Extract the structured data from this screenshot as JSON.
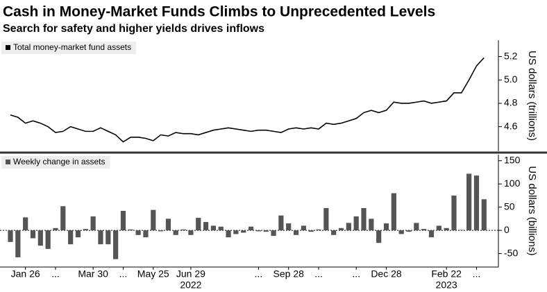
{
  "title": "Cash in Money-Market Funds Climbs to Unprecedented Levels",
  "subtitle": "Search for safety and higher yields drives inflows",
  "chart_data": [
    {
      "type": "line",
      "y_axis_label": "US dollars (trillions)",
      "ylim": [
        4.39,
        5.34
      ],
      "yticks": [
        4.6,
        4.8,
        {
          "value": 5,
          "label": "5.0"
        },
        5.2
      ],
      "legend": "top-left",
      "series": [
        {
          "name": "Total money-market fund assets",
          "color": "#000000",
          "values": [
            4.7,
            4.68,
            4.63,
            4.65,
            4.63,
            4.6,
            4.55,
            4.56,
            4.6,
            4.58,
            4.56,
            4.56,
            4.59,
            4.56,
            4.53,
            4.47,
            4.51,
            4.51,
            4.5,
            4.48,
            4.53,
            4.52,
            4.55,
            4.54,
            4.54,
            4.53,
            4.55,
            4.57,
            4.58,
            4.59,
            4.58,
            4.57,
            4.56,
            4.57,
            4.57,
            4.56,
            4.55,
            4.58,
            4.59,
            4.58,
            4.59,
            4.58,
            4.63,
            4.62,
            4.63,
            4.65,
            4.67,
            4.72,
            4.74,
            4.72,
            4.74,
            4.81,
            4.8,
            4.8,
            4.81,
            4.82,
            4.8,
            4.81,
            4.82,
            4.89,
            4.89,
            5.0,
            5.12,
            5.19
          ]
        }
      ]
    },
    {
      "type": "bar",
      "y_axis_label": "US dollars (billions)",
      "ylim": [
        -79,
        163
      ],
      "yticks": [
        -50,
        0,
        50,
        100,
        150
      ],
      "legend": "top-left",
      "categories": [
        null,
        null,
        "Jan 26",
        null,
        null,
        null,
        "...",
        null,
        null,
        null,
        null,
        "Mar 30",
        null,
        null,
        null,
        "...",
        null,
        null,
        null,
        "May 25",
        null,
        null,
        null,
        null,
        "Jun 29",
        null,
        null,
        null,
        null,
        null,
        null,
        null,
        null,
        "...",
        null,
        null,
        null,
        "Sep 28",
        null,
        null,
        null,
        "...",
        null,
        null,
        null,
        null,
        "...",
        null,
        null,
        null,
        "Dec 28",
        null,
        null,
        null,
        null,
        null,
        null,
        null,
        "Feb 22",
        null,
        null,
        null,
        "...",
        null
      ],
      "category_years": [
        null,
        null,
        null,
        null,
        null,
        null,
        null,
        null,
        null,
        null,
        null,
        null,
        null,
        null,
        null,
        null,
        null,
        null,
        null,
        null,
        null,
        null,
        null,
        null,
        "2022",
        null,
        null,
        null,
        null,
        null,
        null,
        null,
        null,
        null,
        null,
        null,
        null,
        null,
        null,
        null,
        null,
        null,
        null,
        null,
        null,
        null,
        null,
        null,
        null,
        null,
        null,
        null,
        null,
        null,
        null,
        null,
        null,
        null,
        "2023",
        null,
        null,
        null,
        null,
        null
      ],
      "series": [
        {
          "name": "Weekly change in assets",
          "color": "#555555",
          "values": [
            -25,
            -58,
            28,
            -17,
            -33,
            -40,
            5,
            52,
            -30,
            -15,
            3,
            30,
            -30,
            -30,
            -62,
            42,
            2,
            -10,
            -15,
            44,
            -2,
            25,
            -10,
            2,
            -10,
            27,
            18,
            10,
            8,
            -15,
            -8,
            -5,
            8,
            -2,
            -3,
            -12,
            32,
            15,
            -10,
            10,
            -3,
            2,
            48,
            -10,
            5,
            16,
            30,
            48,
            25,
            -27,
            15,
            80,
            -8,
            -3,
            16,
            3,
            -15,
            10,
            5,
            75,
            1,
            122,
            118,
            67
          ]
        }
      ]
    }
  ]
}
